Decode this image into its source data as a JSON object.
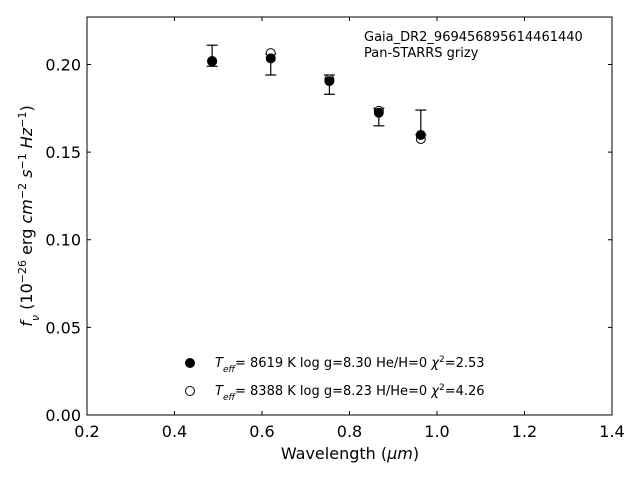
{
  "chart_data": {
    "type": "scatter",
    "xlabel_base": "Wavelength (",
    "xlabel_unit": "μm",
    "xlabel_end": ")",
    "ylabel_parts": {
      "f": "f",
      "nu": "ν",
      "open": " (10",
      "exp1": "−26",
      "erg": " erg ",
      "cm": "cm",
      "exp2": "−2",
      "s": " s",
      "exp3": "−1",
      "hz": " Hz",
      "exp4": "−1",
      "close": ")"
    },
    "xlim": [
      0.2,
      1.4
    ],
    "ylim": [
      0.0,
      0.2271
    ],
    "xticks": [
      0.2,
      0.4,
      0.6,
      0.8,
      1.0,
      1.2,
      1.4
    ],
    "xtick_labels": [
      "0.2",
      "0.4",
      "0.6",
      "0.8",
      "1.0",
      "1.2",
      "1.4"
    ],
    "yticks": [
      0.0,
      0.05,
      0.1,
      0.15,
      0.2
    ],
    "ytick_labels": [
      "0.00",
      "0.05",
      "0.10",
      "0.15",
      "0.20"
    ],
    "annotation": [
      "Gaia_DR2_969456895614461440",
      "Pan-STARRS grizy"
    ],
    "observed": [
      {
        "x": 0.486,
        "y": 0.2,
        "yerr_low": 0.001,
        "yerr_high": 0.011
      },
      {
        "x": 0.62,
        "y": 0.204,
        "yerr_low": 0.01,
        "yerr_high": 0.002
      },
      {
        "x": 0.754,
        "y": 0.192,
        "yerr_low": 0.009,
        "yerr_high": 0.002
      },
      {
        "x": 0.867,
        "y": 0.173,
        "yerr_low": 0.008,
        "yerr_high": 0.002
      },
      {
        "x": 0.963,
        "y": 0.16,
        "yerr_low": 0.0,
        "yerr_high": 0.014
      }
    ],
    "series": [
      {
        "name": "Teff=8619 K log g=8.30 He/H=0 χ2=2.53",
        "style": "filled",
        "x": [
          0.486,
          0.62,
          0.754,
          0.867,
          0.963
        ],
        "y": [
          0.2018,
          0.2035,
          0.1905,
          0.1725,
          0.1598
        ],
        "legend": {
          "T": "T",
          "eff": "eff",
          "teff_val": "=  8619 K  log g=8.30  He/H=0  ",
          "chi": "χ",
          "chi_exp": "2",
          "chi_val": "=2.53"
        }
      },
      {
        "name": "Teff=8388 K log g=8.23 H/He=0 χ2=4.26",
        "style": "open",
        "x": [
          0.486,
          0.62,
          0.754,
          0.867,
          0.963
        ],
        "y": [
          0.202,
          0.2065,
          0.1915,
          0.1735,
          0.1575
        ],
        "legend": {
          "T": "T",
          "eff": "eff",
          "teff_val": "=  8388 K  log g=8.23  H/He=0  ",
          "chi": "χ",
          "chi_exp": "2",
          "chi_val": "=4.26"
        }
      }
    ]
  }
}
